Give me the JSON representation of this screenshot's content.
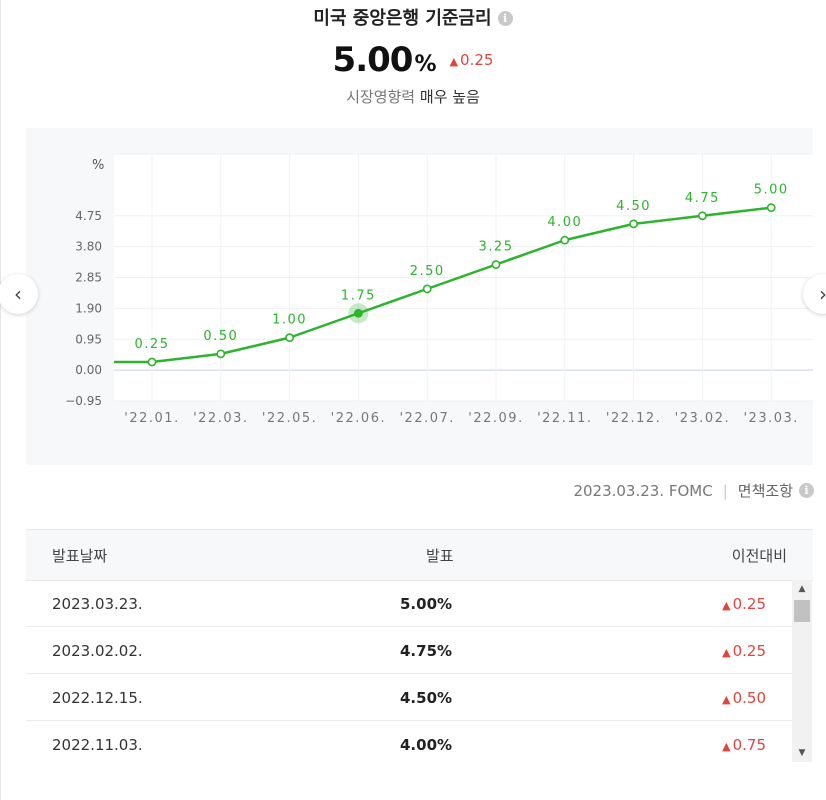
{
  "header": {
    "title": "미국 중앙은행 기준금리",
    "info_icon": "i",
    "value": "5.00",
    "unit": "%",
    "change_arrow": "▲",
    "change": "0.25",
    "influence_label": "시장영향력",
    "influence_value": "매우 높음"
  },
  "nav": {
    "prev_glyph": "‹",
    "next_glyph": "›"
  },
  "chart_data": {
    "type": "line",
    "ylabel": "%",
    "yticks": [
      "4.75",
      "3.80",
      "2.85",
      "1.90",
      "0.95",
      "0.00",
      "−0.95"
    ],
    "ytick_values": [
      4.75,
      3.8,
      2.85,
      1.9,
      0.95,
      0.0,
      -0.95
    ],
    "categories": [
      "'22.01.",
      "'22.03.",
      "'22.05.",
      "'22.06.",
      "'22.07.",
      "'22.09.",
      "'22.11.",
      "'22.12.",
      "'23.02.",
      "'23.03."
    ],
    "values": [
      0.25,
      0.5,
      1.0,
      1.75,
      2.5,
      3.25,
      4.0,
      4.5,
      4.75,
      5.0
    ],
    "point_labels": [
      "0.25",
      "0.50",
      "1.00",
      "1.75",
      "2.50",
      "3.25",
      "4.00",
      "4.50",
      "4.75",
      "5.00"
    ],
    "highlight_index": 3,
    "ylim": [
      -0.95,
      6.65
    ],
    "grid": true,
    "line_color": "#2db32d"
  },
  "source": {
    "date": "2023.03.23.",
    "event": "FOMC",
    "disclaimer": "면책조항",
    "disclaimer_icon": "i"
  },
  "table": {
    "headers": {
      "date": "발표날짜",
      "value": "발표",
      "prev": "이전대비"
    },
    "rows": [
      {
        "date": "2023.03.23.",
        "value": "5.00%",
        "arrow": "▲",
        "prev": "0.25"
      },
      {
        "date": "2023.02.02.",
        "value": "4.75%",
        "arrow": "▲",
        "prev": "0.25"
      },
      {
        "date": "2022.12.15.",
        "value": "4.50%",
        "arrow": "▲",
        "prev": "0.50"
      },
      {
        "date": "2022.11.03.",
        "value": "4.00%",
        "arrow": "▲",
        "prev": "0.75"
      }
    ]
  },
  "scrollbar": {
    "up_glyph": "▲",
    "down_glyph": "▼"
  }
}
